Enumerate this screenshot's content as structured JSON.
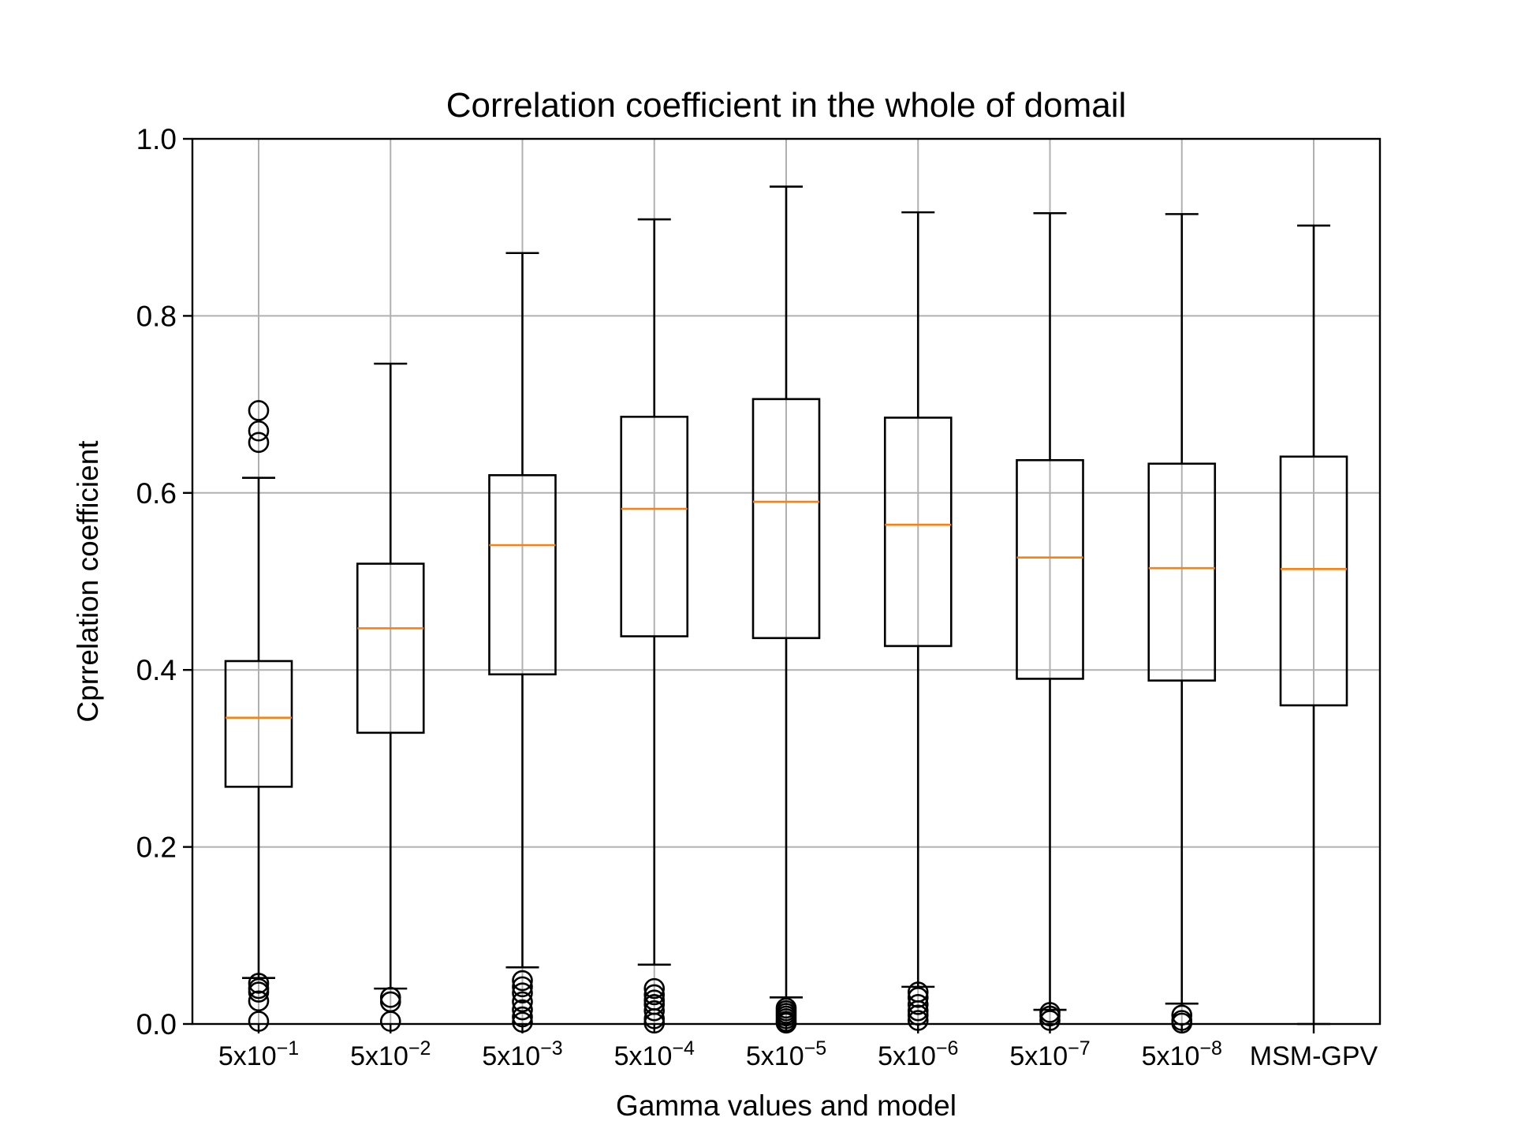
{
  "chart_data": {
    "type": "boxplot",
    "title": "Correlation coefficient in the whole of domail",
    "xlabel": "Gamma values and model",
    "ylabel": "Cprrelation coefficient",
    "ylim": [
      0.0,
      1.0
    ],
    "yticks": [
      "0.0",
      "0.2",
      "0.4",
      "0.6",
      "0.8",
      "1.0"
    ],
    "grid": true,
    "categories": [
      {
        "base": "5x10",
        "exp": "−1"
      },
      {
        "base": "5x10",
        "exp": "−2"
      },
      {
        "base": "5x10",
        "exp": "−3"
      },
      {
        "base": "5x10",
        "exp": "−4"
      },
      {
        "base": "5x10",
        "exp": "−5"
      },
      {
        "base": "5x10",
        "exp": "−6"
      },
      {
        "base": "5x10",
        "exp": "−7"
      },
      {
        "base": "5x10",
        "exp": "−8"
      },
      {
        "base": "MSM-GPV",
        "exp": ""
      }
    ],
    "boxes": [
      {
        "whisker_low": 0.052,
        "q1": 0.268,
        "median": 0.346,
        "q3": 0.41,
        "whisker_high": 0.617,
        "outliers": [
          0.693,
          0.67,
          0.657,
          0.046,
          0.04,
          0.036,
          0.026,
          0.003
        ]
      },
      {
        "whisker_low": 0.04,
        "q1": 0.329,
        "median": 0.447,
        "q3": 0.52,
        "whisker_high": 0.746,
        "outliers": [
          0.03,
          0.025,
          0.003
        ]
      },
      {
        "whisker_low": 0.064,
        "q1": 0.395,
        "median": 0.541,
        "q3": 0.62,
        "whisker_high": 0.871,
        "outliers": [
          0.049,
          0.042,
          0.035,
          0.025,
          0.016,
          0.008,
          0.002
        ]
      },
      {
        "whisker_low": 0.067,
        "q1": 0.438,
        "median": 0.582,
        "q3": 0.686,
        "whisker_high": 0.909,
        "outliers": [
          0.04,
          0.033,
          0.027,
          0.022,
          0.015,
          0.006,
          0.001
        ]
      },
      {
        "whisker_low": 0.03,
        "q1": 0.436,
        "median": 0.59,
        "q3": 0.706,
        "whisker_high": 0.946,
        "outliers": [
          0.018,
          0.015,
          0.012,
          0.009,
          0.006,
          0.003,
          0.001
        ]
      },
      {
        "whisker_low": 0.042,
        "q1": 0.427,
        "median": 0.564,
        "q3": 0.685,
        "whisker_high": 0.917,
        "outliers": [
          0.036,
          0.03,
          0.022,
          0.015,
          0.01,
          0.004
        ]
      },
      {
        "whisker_low": 0.016,
        "q1": 0.39,
        "median": 0.527,
        "q3": 0.637,
        "whisker_high": 0.916,
        "outliers": [
          0.013,
          0.009,
          0.004
        ]
      },
      {
        "whisker_low": 0.023,
        "q1": 0.388,
        "median": 0.515,
        "q3": 0.633,
        "whisker_high": 0.915,
        "outliers": [
          0.01,
          0.004,
          0.001
        ]
      },
      {
        "whisker_low": 0.0,
        "q1": 0.36,
        "median": 0.514,
        "q3": 0.641,
        "whisker_high": 0.902,
        "outliers": []
      }
    ],
    "colors": {
      "box": "#000000",
      "median": "#ff7f0e",
      "grid": "#b0b0b0",
      "background": "#ffffff"
    }
  }
}
